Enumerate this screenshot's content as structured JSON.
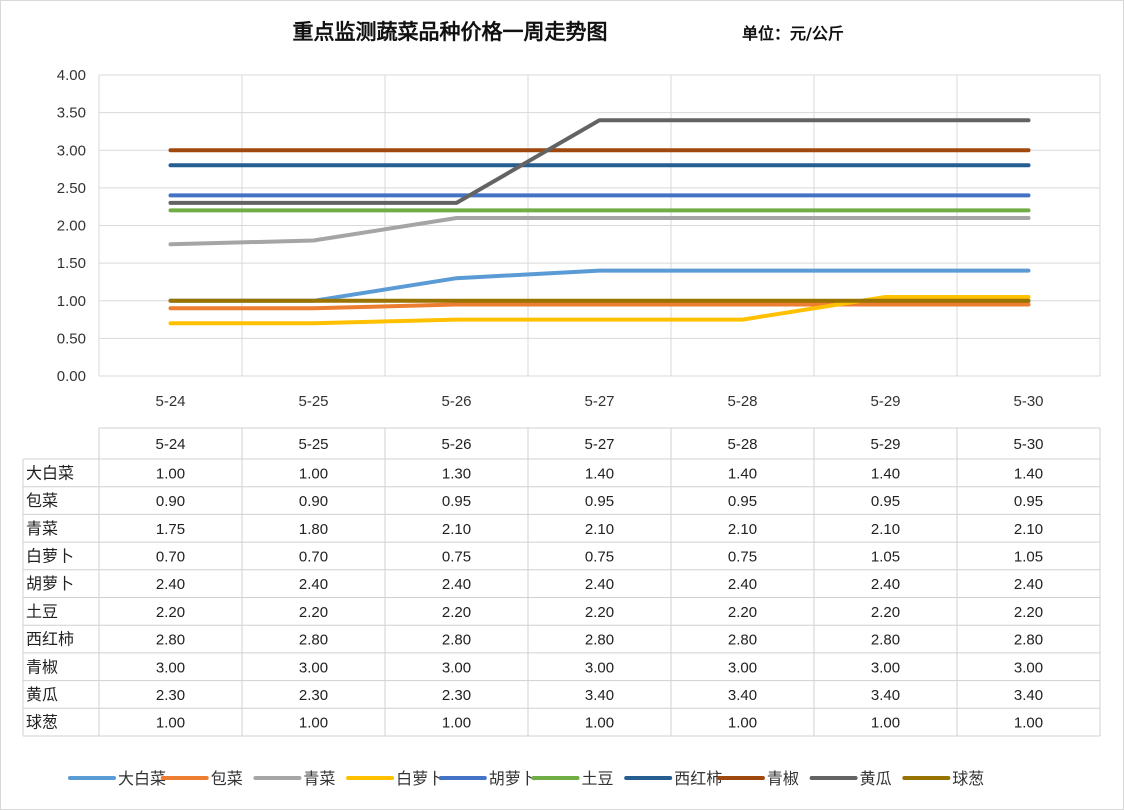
{
  "chart_data": {
    "type": "line",
    "title": "重点监测蔬菜品种价格一周走势图",
    "unit_label": "单位：元/公斤",
    "categories": [
      "5-24",
      "5-25",
      "5-26",
      "5-27",
      "5-28",
      "5-29",
      "5-30"
    ],
    "ylim": [
      0,
      4
    ],
    "yticks": [
      "0.00",
      "0.50",
      "1.00",
      "1.50",
      "2.00",
      "2.50",
      "3.00",
      "3.50",
      "4.00"
    ],
    "grid": true,
    "legend_position": "bottom",
    "series": [
      {
        "name": "大白菜",
        "color": "#5b9bd5",
        "values": [
          1.0,
          1.0,
          1.3,
          1.4,
          1.4,
          1.4,
          1.4
        ],
        "display": [
          "1.00",
          "1.00",
          "1.30",
          "1.40",
          "1.40",
          "1.40",
          "1.40"
        ]
      },
      {
        "name": "包菜",
        "color": "#ed7d31",
        "values": [
          0.9,
          0.9,
          0.95,
          0.95,
          0.95,
          0.95,
          0.95
        ],
        "display": [
          "0.90",
          "0.90",
          "0.95",
          "0.95",
          "0.95",
          "0.95",
          "0.95"
        ]
      },
      {
        "name": "青菜",
        "color": "#a5a5a5",
        "values": [
          1.75,
          1.8,
          2.1,
          2.1,
          2.1,
          2.1,
          2.1
        ],
        "display": [
          "1.75",
          "1.80",
          "2.10",
          "2.10",
          "2.10",
          "2.10",
          "2.10"
        ]
      },
      {
        "name": "白萝卜",
        "color": "#ffc000",
        "values": [
          0.7,
          0.7,
          0.75,
          0.75,
          0.75,
          1.05,
          1.05
        ],
        "display": [
          "0.70",
          "0.70",
          "0.75",
          "0.75",
          "0.75",
          "1.05",
          "1.05"
        ]
      },
      {
        "name": "胡萝卜",
        "color": "#4472c4",
        "values": [
          2.4,
          2.4,
          2.4,
          2.4,
          2.4,
          2.4,
          2.4
        ],
        "display": [
          "2.40",
          "2.40",
          "2.40",
          "2.40",
          "2.40",
          "2.40",
          "2.40"
        ]
      },
      {
        "name": "土豆",
        "color": "#70ad47",
        "values": [
          2.2,
          2.2,
          2.2,
          2.2,
          2.2,
          2.2,
          2.2
        ],
        "display": [
          "2.20",
          "2.20",
          "2.20",
          "2.20",
          "2.20",
          "2.20",
          "2.20"
        ]
      },
      {
        "name": "西红柿",
        "color": "#255e91",
        "values": [
          2.8,
          2.8,
          2.8,
          2.8,
          2.8,
          2.8,
          2.8
        ],
        "display": [
          "2.80",
          "2.80",
          "2.80",
          "2.80",
          "2.80",
          "2.80",
          "2.80"
        ]
      },
      {
        "name": "青椒",
        "color": "#9e480e",
        "values": [
          3.0,
          3.0,
          3.0,
          3.0,
          3.0,
          3.0,
          3.0
        ],
        "display": [
          "3.00",
          "3.00",
          "3.00",
          "3.00",
          "3.00",
          "3.00",
          "3.00"
        ]
      },
      {
        "name": "黄瓜",
        "color": "#636363",
        "values": [
          2.3,
          2.3,
          2.3,
          3.4,
          3.4,
          3.4,
          3.4
        ],
        "display": [
          "2.30",
          "2.30",
          "2.30",
          "3.40",
          "3.40",
          "3.40",
          "3.40"
        ]
      },
      {
        "name": "球葱",
        "color": "#997300",
        "values": [
          1.0,
          1.0,
          1.0,
          1.0,
          1.0,
          1.0,
          1.0
        ],
        "display": [
          "1.00",
          "1.00",
          "1.00",
          "1.00",
          "1.00",
          "1.00",
          "1.00"
        ]
      }
    ]
  }
}
